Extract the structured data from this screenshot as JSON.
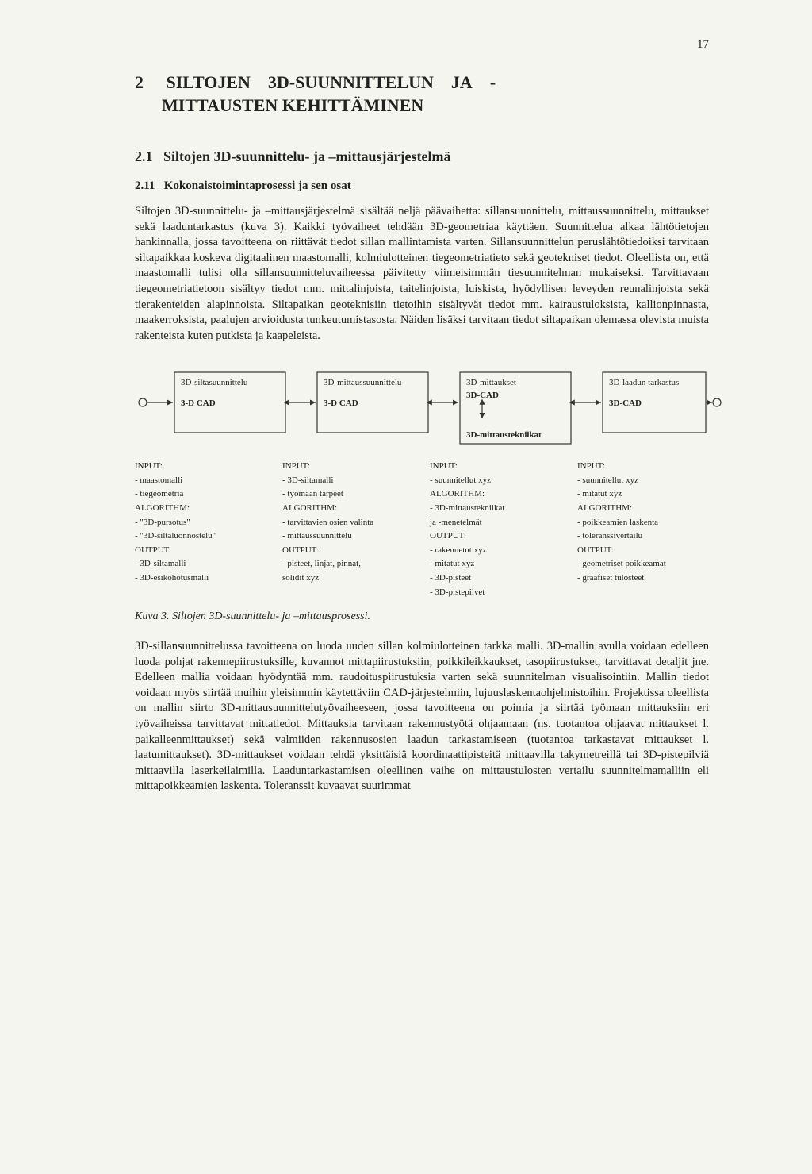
{
  "page_number": "17",
  "chapter": {
    "number": "2",
    "title_line1": "SILTOJEN    3D-SUUNNITTELUN    JA    -",
    "title_line2": "MITTAUSTEN KEHITTÄMINEN"
  },
  "section": {
    "number": "2.1",
    "title": "Siltojen 3D-suunnittelu- ja –mittausjärjestelmä"
  },
  "subsection": {
    "number": "2.11",
    "title": "Kokonaistoimintaprosessi ja sen osat"
  },
  "para1": "Siltojen 3D-suunnittelu- ja –mittausjärjestelmä sisältää neljä päävaihetta: sillansuunnittelu, mittaussuunnittelu, mittaukset sekä laaduntarkastus (kuva 3). Kaikki työvaiheet tehdään 3D-geometriaa käyttäen. Suunnittelua alkaa lähtötietojen hankinnalla, jossa tavoitteena on riittävät tiedot sillan mallintamista varten. Sillansuunnittelun peruslähtötiedoiksi tarvitaan siltapaikkaa koskeva digitaalinen maastomalli, kolmiulotteinen tiegeometriatieto sekä geotekniset tiedot. Oleellista on, että maastomalli tulisi olla sillansuunnitteluvaiheessa päivitetty viimeisimmän tiesuunnitelman mukaiseksi. Tarvittavaan tiegeometriatietoon sisältyy tiedot mm. mittalinjoista, taitelinjoista, luiskista, hyödyllisen leveyden reunalinjoista sekä tierakenteiden alapinnoista. Siltapaikan geoteknisiin tietoihin sisältyvät tiedot mm. kairaustuloksista, kallionpinnasta, maakerroksista, paalujen arvioidusta tunkeutumistasosta. Näiden lisäksi tarvitaan tiedot siltapaikan olemassa olevista muista rakenteista kuten putkista ja kaapeleista.",
  "flow": {
    "box_stroke": "#333333",
    "box_fill": "none",
    "arrow_color": "#333333",
    "boxes": [
      {
        "title": "3D-siltasuunnittelu",
        "cad": "3-D CAD",
        "sub": ""
      },
      {
        "title": "3D-mittaussuunnittelu",
        "cad": "3-D CAD",
        "sub": ""
      },
      {
        "title": "3D-mittaukset",
        "cad": "3D-CAD",
        "sub": "3D-mittaustekniikat"
      },
      {
        "title": "3D-laadun tarkastus",
        "cad": "3D-CAD",
        "sub": ""
      }
    ]
  },
  "columns": [
    {
      "lines": [
        "INPUT:",
        "- maastomalli",
        "- tiegeometria",
        "ALGORITHM:",
        "- \"3D-pursotus\"",
        "- \"3D-siltaluonnostelu\"",
        "OUTPUT:",
        "- 3D-siltamalli",
        "- 3D-esikohotusmalli"
      ]
    },
    {
      "lines": [
        "INPUT:",
        "- 3D-siltamalli",
        "- työmaan tarpeet",
        "ALGORITHM:",
        "- tarvittavien osien valinta",
        "- mittaussuunnittelu",
        "OUTPUT:",
        "- pisteet, linjat, pinnat,",
        "  solidit xyz"
      ]
    },
    {
      "lines": [
        "INPUT:",
        "- suunnitellut xyz",
        "ALGORITHM:",
        "- 3D-mittaustekniikat",
        "  ja -menetelmät",
        "OUTPUT:",
        "- rakennetut xyz",
        "- mitatut xyz",
        "- 3D-pisteet",
        "- 3D-pistepilvet"
      ]
    },
    {
      "lines": [
        "INPUT:",
        "- suunnitellut xyz",
        "- mitatut xyz",
        "ALGORITHM:",
        "- poikkeamien laskenta",
        "- toleranssivertailu",
        "OUTPUT:",
        "- geometriset poikkeamat",
        "- graafiset tulosteet"
      ]
    }
  ],
  "caption": "Kuva 3. Siltojen 3D-suunnittelu- ja –mittausprosessi.",
  "para2": "3D-sillansuunnittelussa tavoitteena on luoda uuden sillan kolmiulotteinen tarkka malli. 3D-mallin avulla voidaan edelleen luoda pohjat rakennepiirustuksille, kuvannot mittapiirustuksiin, poikkileikkaukset, tasopiirustukset, tarvittavat detaljit jne. Edelleen mallia voidaan hyödyntää mm. raudoituspiirustuksia varten sekä suunnitelman visualisointiin. Mallin tiedot voidaan myös siirtää muihin yleisimmin käytettäviin CAD-järjestelmiin, lujuuslaskentaohjelmistoihin. Projektissa oleellista on mallin siirto 3D-mittausuunnittelutyövaiheeseen, jossa tavoitteena on poimia ja siirtää työmaan mittauksiin eri työvaiheissa tarvittavat mittatiedot. Mittauksia tarvitaan rakennustyötä ohjaamaan (ns. tuotantoa ohjaavat mittaukset l. paikalleenmittaukset) sekä valmiiden rakennusosien laadun tarkastamiseen (tuotantoa tarkastavat mittaukset l. laatumittaukset). 3D-mittaukset voidaan tehdä yksittäisiä koordinaattipisteitä mittaavilla takymetreillä tai 3D-pistepilviä mittaavilla laserkeilaimilla. Laaduntarkastamisen oleellinen vaihe on mittaustulosten vertailu suunnitelmamalliin eli mittapoikkeamien laskenta. Toleranssit kuvaavat suurimmat"
}
